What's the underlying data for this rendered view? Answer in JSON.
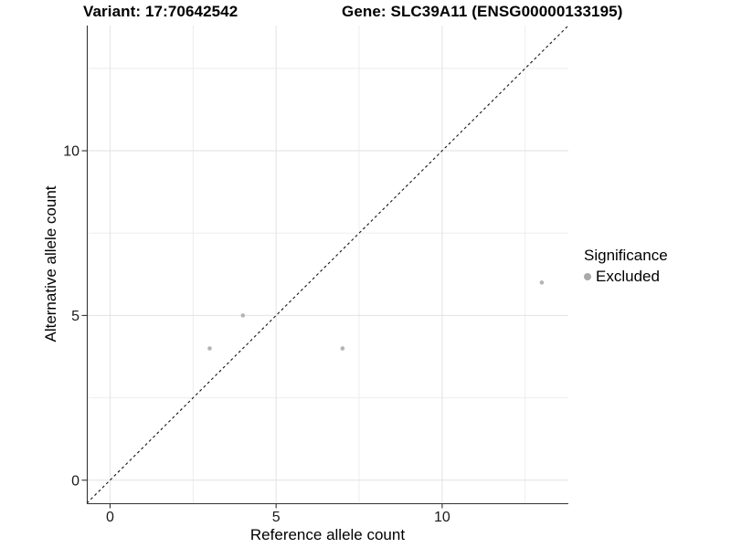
{
  "header": {
    "variant_title": "Variant: 17:70642542",
    "gene_title": "Gene: SLC39A11 (ENSG00000133195)"
  },
  "chart_data": {
    "type": "scatter",
    "xlabel": "Reference allele count",
    "ylabel": "Alternative allele count",
    "xlim": [
      -0.7,
      13.8
    ],
    "ylim": [
      -0.7,
      13.8
    ],
    "x_ticks": [
      0,
      5,
      10
    ],
    "y_ticks": [
      0,
      5,
      10
    ],
    "grid": {
      "major": [
        0,
        5,
        10
      ],
      "minor": [
        2.5,
        7.5,
        12.5
      ]
    },
    "series": [
      {
        "name": "Excluded",
        "color": "#b4b4b4",
        "points": [
          {
            "x": 3,
            "y": 4
          },
          {
            "x": 4,
            "y": 5
          },
          {
            "x": 7,
            "y": 4
          },
          {
            "x": 13,
            "y": 6
          }
        ]
      }
    ],
    "reference_line": {
      "slope": 1,
      "intercept": 0,
      "style": "dashed",
      "color": "#141414"
    },
    "legend": {
      "title": "Significance",
      "position": "right",
      "entries": [
        {
          "label": "Excluded",
          "color": "#a9a9a9"
        }
      ]
    }
  },
  "colors": {
    "background": "#ffffff",
    "grid_major": "#e2e2e2",
    "grid_minor": "#ededed",
    "axis_line": "#333333",
    "tick_mark": "#333333",
    "tick_label": "#1a1a1a"
  }
}
